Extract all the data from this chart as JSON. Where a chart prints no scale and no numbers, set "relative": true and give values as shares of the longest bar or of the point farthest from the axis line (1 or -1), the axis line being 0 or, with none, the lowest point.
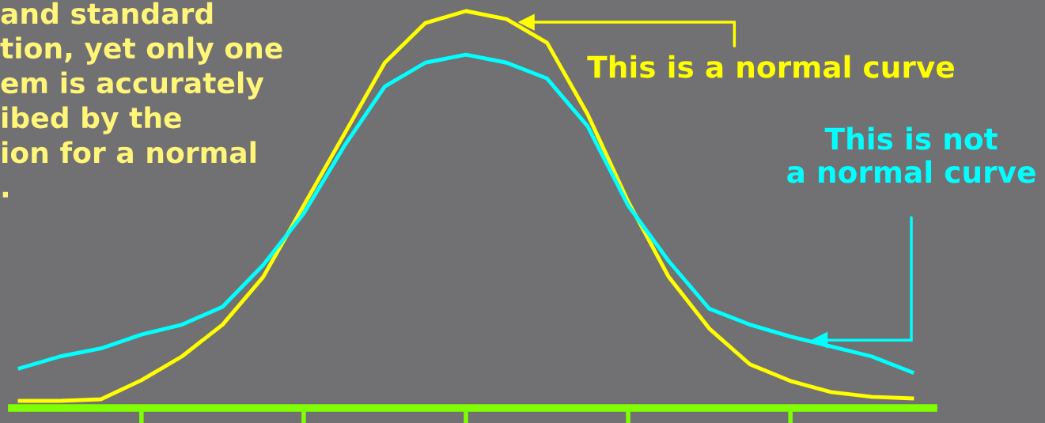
{
  "chart_data": {
    "type": "line",
    "relative": true,
    "categories": [
      null,
      null,
      null,
      null,
      null,
      null,
      null,
      null,
      null,
      null,
      null,
      null,
      null,
      null,
      null,
      null,
      null,
      null,
      null,
      null,
      null,
      null,
      null
    ],
    "grid": false,
    "marker": "none",
    "line_style": "solid",
    "series": [
      {
        "color": "#ffff00",
        "values": [
          0.018,
          0.018,
          0.022,
          0.07,
          0.13,
          0.21,
          0.33,
          0.51,
          0.69,
          0.87,
          0.97,
          1.0,
          0.98,
          0.92,
          0.74,
          0.52,
          0.33,
          0.2,
          0.11,
          0.068,
          0.04,
          0.028,
          0.024
        ]
      },
      {
        "color": "#00ffff",
        "values": [
          0.1,
          0.13,
          0.15,
          0.185,
          0.21,
          0.255,
          0.36,
          0.49,
          0.66,
          0.81,
          0.87,
          0.89,
          0.87,
          0.83,
          0.71,
          0.51,
          0.37,
          0.25,
          0.21,
          0.18,
          0.155,
          0.13,
          0.09
        ]
      }
    ],
    "annotations": [
      "and standard\ntion, yet only one\nem is accurately\nibed by the\nion for a normal\n.",
      "This is a normal curve",
      "This is not\na normal curve"
    ]
  }
}
